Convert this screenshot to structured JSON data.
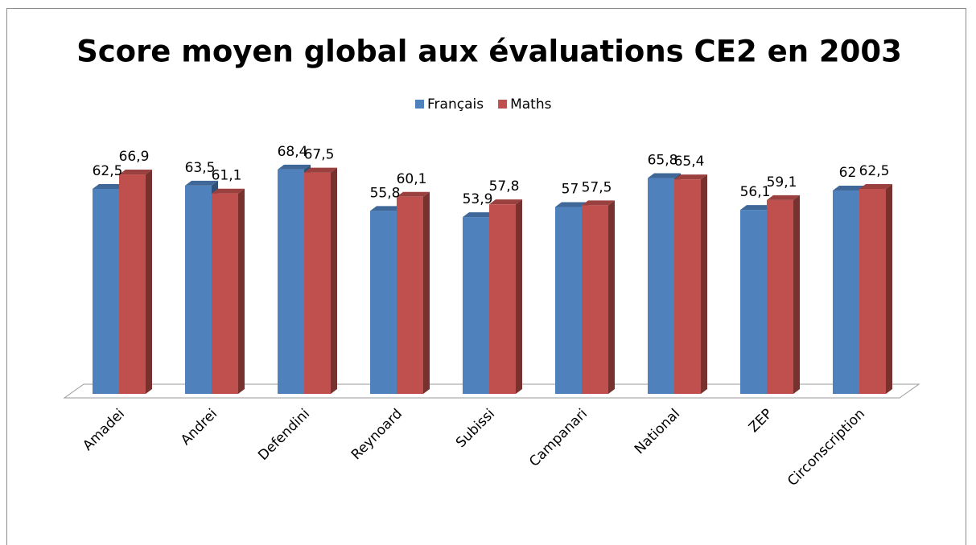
{
  "chart_data": {
    "type": "bar3d",
    "title": "Score moyen global aux évaluations CE2 en 2003",
    "categories": [
      "Amadei",
      "Andrei",
      "Defendini",
      "Reynoard",
      "Subissi",
      "Campanari",
      "National",
      "ZEP",
      "Circonscription"
    ],
    "series": [
      {
        "name": "Français",
        "color": "#4f81bd",
        "values": [
          62.5,
          63.5,
          68.4,
          55.8,
          53.9,
          57,
          65.8,
          56.1,
          62
        ],
        "value_labels": [
          "62,5",
          "63,5",
          "68,4",
          "55,8",
          "53,9",
          "57",
          "65,8",
          "56,1",
          "62"
        ]
      },
      {
        "name": "Maths",
        "color": "#c0504d",
        "values": [
          66.9,
          61.1,
          67.5,
          60.1,
          57.8,
          57.5,
          65.4,
          59.1,
          62.5
        ],
        "value_labels": [
          "66,9",
          "61,1",
          "67,5",
          "60,1",
          "57,8",
          "57,5",
          "65,4",
          "59,1",
          "62,5"
        ]
      }
    ],
    "legend": "top"
  }
}
